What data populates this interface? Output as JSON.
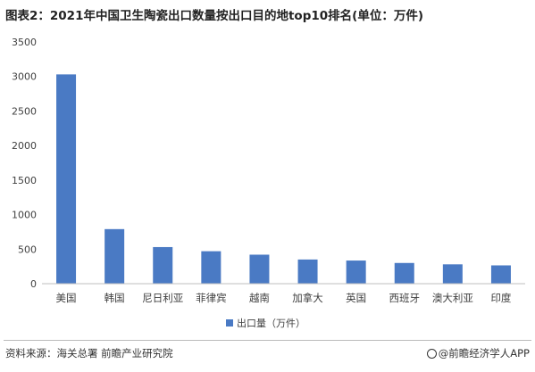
{
  "title": "图表2：2021年中国卫生陶瓷出口数量按出口目的地top10排名(单位：万件)",
  "source": "资料来源：海关总署 前瞻产业研究院",
  "brand": "@前瞻经济学人APP",
  "colors": {
    "bar": "#4a7ac4",
    "axis": "#bfbfbf",
    "text": "#404040"
  },
  "chart_data": {
    "type": "bar",
    "title": "图表2：2021年中国卫生陶瓷出口数量按出口目的地top10排名(单位：万件)",
    "categories": [
      "美国",
      "韩国",
      "尼日利亚",
      "菲律宾",
      "越南",
      "加拿大",
      "英国",
      "西班牙",
      "澳大利亚",
      "印度"
    ],
    "series": [
      {
        "name": "出口量（万件）",
        "values": [
          3030,
          790,
          530,
          470,
          420,
          350,
          335,
          300,
          280,
          265
        ]
      }
    ],
    "ylim": [
      0,
      3500
    ],
    "yticks": [
      0,
      500,
      1000,
      1500,
      2000,
      2500,
      3000,
      3500
    ],
    "grid": false,
    "legend": "bottom"
  }
}
